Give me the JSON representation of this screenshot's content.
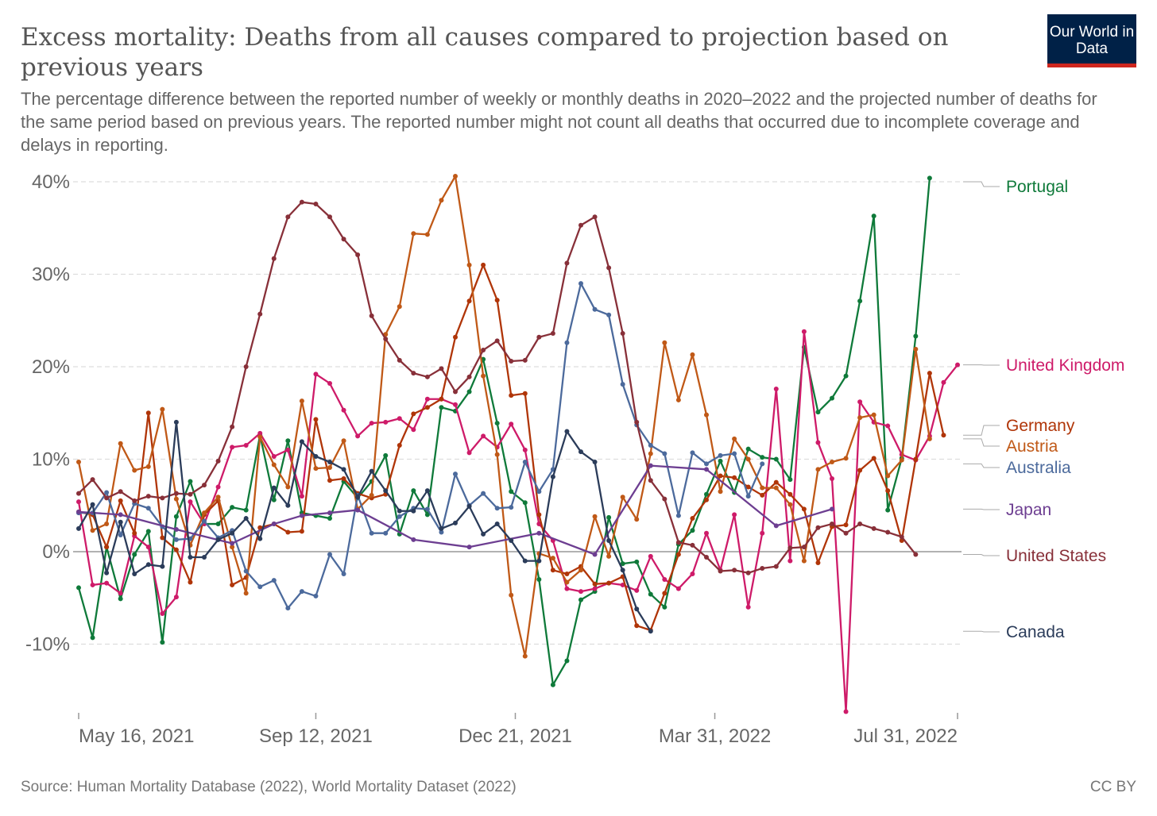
{
  "header": {
    "title": "Excess mortality: Deaths from all causes compared to projection based on previous years",
    "subtitle": "The percentage difference between the reported number of weekly or monthly deaths in 2020–2022 and the projected number of deaths for the same period based on previous years. The reported number might not count all deaths that occurred due to incomplete coverage and delays in reporting.",
    "logo": "Our World in Data"
  },
  "footer": {
    "source": "Source: Human Mortality Database (2022), World Mortality Dataset (2022)",
    "license": "CC BY"
  },
  "chart_data": {
    "type": "line",
    "title": "Excess mortality: Deaths from all causes compared to projection based on previous years",
    "x_unit": "weeks since May 16, 2021",
    "x_start": "May 16, 2021",
    "xlim": [
      0,
      63
    ],
    "ylim": [
      -17.5,
      41
    ],
    "y_ticks": [
      {
        "v": -10,
        "label": "-10%"
      },
      {
        "v": 0,
        "label": "0%"
      },
      {
        "v": 10,
        "label": "10%"
      },
      {
        "v": 20,
        "label": "20%"
      },
      {
        "v": 30,
        "label": "30%"
      },
      {
        "v": 40,
        "label": "40%"
      }
    ],
    "x_ticks": [
      {
        "week": 0,
        "label": "May 16, 2021"
      },
      {
        "week": 17,
        "label": "Sep 12, 2021"
      },
      {
        "week": 31.3,
        "label": "Dec 21, 2021"
      },
      {
        "week": 45.6,
        "label": "Mar 31, 2022"
      },
      {
        "week": 63,
        "label": "Jul 31, 2022"
      }
    ],
    "grid": true,
    "legend": "right, labels at line ends",
    "series": [
      {
        "name": "Portugal",
        "color": "#0f7a3a",
        "values": [
          -3.9,
          -9.3,
          0.5,
          -5.1,
          -0.3,
          2.2,
          -9.8,
          3.8,
          7.6,
          3.0,
          3.0,
          4.8,
          4.5,
          12.6,
          5.6,
          12.0,
          4.2,
          3.9,
          3.6,
          7.6,
          5.8,
          7.6,
          10.4,
          1.9,
          6.6,
          4.0,
          15.6,
          15.2,
          17.3,
          20.8,
          13.9,
          6.5,
          5.3,
          -3.0,
          -14.4,
          -11.8,
          -5.2,
          -4.3,
          3.7,
          -1.3,
          -1.1,
          -4.6,
          -6.0,
          0.8,
          2.3,
          6.2,
          9.8,
          6.4,
          11.1,
          10.2,
          10.0,
          7.8,
          22.1,
          15.1,
          16.6,
          19.0,
          27.1,
          36.3,
          4.5,
          10.1,
          23.3,
          40.4,
          null,
          null
        ]
      },
      {
        "name": "United Kingdom",
        "color": "#ce1b69",
        "values": [
          5.4,
          -3.6,
          -3.4,
          -4.5,
          1.7,
          0.5,
          -6.7,
          -4.9,
          5.4,
          3.0,
          7.0,
          11.3,
          11.5,
          12.8,
          10.3,
          11.0,
          6.0,
          19.2,
          18.2,
          15.3,
          12.5,
          13.9,
          14.0,
          14.4,
          13.2,
          16.5,
          16.5,
          15.9,
          10.7,
          12.5,
          11.3,
          13.8,
          11.0,
          3.0,
          1.2,
          -4.0,
          -4.3,
          -4.0,
          -3.4,
          -3.6,
          -4.2,
          -0.5,
          -3.0,
          -4.0,
          -2.4,
          2.0,
          -2.0,
          4.0,
          -6.0,
          2.0,
          17.6,
          -1.0,
          23.8,
          11.8,
          7.9,
          -17.3,
          16.2,
          14.0,
          13.6,
          10.5,
          9.9,
          12.5,
          18.3,
          20.2
        ]
      },
      {
        "name": "Germany",
        "color": "#b03508",
        "values": [
          4.3,
          4.0,
          0.5,
          5.5,
          2.0,
          15.0,
          1.5,
          0.2,
          -3.3,
          4.0,
          5.5,
          -3.6,
          -2.8,
          2.6,
          3.0,
          2.1,
          2.2,
          14.3,
          7.7,
          7.9,
          6.3,
          5.8,
          6.2,
          11.5,
          14.9,
          15.6,
          16.5,
          23.2,
          27.1,
          31.0,
          27.2,
          16.9,
          17.1,
          4.0,
          -2.0,
          -2.4,
          -1.6,
          -3.5,
          -3.4,
          -2.7,
          -8.0,
          -8.5,
          -4.5,
          -0.3,
          3.6,
          5.6,
          8.2,
          8.0,
          7.0,
          6.1,
          7.5,
          6.2,
          4.6,
          -1.2,
          2.7,
          2.9,
          8.8,
          10.1,
          6.6,
          1.2,
          10.0,
          19.3,
          12.6,
          null
        ]
      },
      {
        "name": "Austria",
        "color": "#c05917",
        "values": [
          9.7,
          2.3,
          3.0,
          11.7,
          8.8,
          9.2,
          15.4,
          5.7,
          0.7,
          4.2,
          5.9,
          0.5,
          -4.5,
          12.4,
          9.4,
          7.0,
          16.3,
          9.0,
          9.1,
          12.0,
          4.6,
          6.1,
          23.5,
          26.5,
          34.4,
          34.3,
          38.0,
          40.6,
          31.0,
          19.0,
          10.5,
          -4.7,
          -11.3,
          -0.2,
          -0.7,
          -3.3,
          -2.0,
          3.8,
          -0.5,
          5.9,
          3.5,
          10.6,
          22.6,
          16.4,
          21.3,
          14.8,
          6.5,
          12.2,
          10.0,
          6.9,
          6.9,
          5.1,
          -1.0,
          8.9,
          9.7,
          10.1,
          14.5,
          14.8,
          8.2,
          9.9,
          21.9,
          12.2,
          null,
          null
        ]
      },
      {
        "name": "Australia",
        "color": "#4c6a9c",
        "values": [
          4.2,
          4.2,
          6.4,
          1.8,
          5.2,
          4.7,
          2.7,
          1.3,
          1.4,
          3.3,
          1.5,
          2.3,
          -2.1,
          -3.8,
          -3.1,
          -6.1,
          -4.3,
          -4.8,
          -0.3,
          -2.4,
          6.1,
          2.0,
          2.0,
          3.8,
          4.7,
          4.6,
          2.1,
          8.4,
          5.0,
          6.3,
          4.7,
          4.8,
          9.7,
          6.5,
          8.9,
          22.6,
          29.0,
          26.2,
          25.6,
          18.1,
          13.7,
          11.5,
          10.6,
          3.9,
          10.7,
          9.5,
          10.4,
          10.6,
          6.0,
          9.5,
          null,
          null,
          null,
          null,
          null,
          null,
          null,
          null,
          null,
          null,
          null,
          null,
          null,
          null
        ]
      },
      {
        "name": "Japan",
        "color": "#6d3e91",
        "values": [
          4.3,
          null,
          null,
          4.0,
          null,
          null,
          null,
          2.4,
          null,
          null,
          null,
          0.9,
          null,
          null,
          3.0,
          null,
          3.9,
          null,
          4.2,
          null,
          4.5,
          null,
          null,
          null,
          1.3,
          null,
          null,
          null,
          0.5,
          null,
          null,
          null,
          null,
          2.0,
          null,
          null,
          null,
          -0.3,
          null,
          null,
          null,
          9.3,
          null,
          null,
          null,
          8.9,
          null,
          null,
          null,
          null,
          2.8,
          null,
          null,
          null,
          4.6,
          null,
          null,
          null,
          null,
          null,
          null,
          null,
          null,
          null
        ]
      },
      {
        "name": "United States",
        "color": "#883039",
        "values": [
          6.3,
          7.8,
          5.8,
          6.5,
          5.5,
          6.0,
          5.8,
          6.3,
          6.2,
          7.2,
          9.8,
          13.5,
          20.0,
          25.7,
          31.7,
          36.2,
          37.8,
          37.6,
          36.2,
          33.8,
          32.1,
          25.5,
          23.0,
          20.7,
          19.3,
          18.9,
          19.8,
          17.3,
          18.9,
          21.8,
          22.8,
          20.6,
          20.7,
          23.2,
          23.6,
          31.2,
          35.3,
          36.2,
          30.7,
          23.6,
          14.0,
          7.7,
          5.7,
          1.0,
          0.7,
          -0.6,
          -2.1,
          -2.0,
          -2.3,
          -1.8,
          -1.6,
          0.4,
          0.5,
          2.6,
          3.0,
          2.0,
          3.0,
          2.5,
          2.1,
          1.6,
          -0.3,
          null,
          null,
          null
        ]
      },
      {
        "name": "Canada",
        "color": "#2b3c5a",
        "values": [
          2.5,
          5.1,
          -2.3,
          3.2,
          -2.4,
          -1.4,
          -1.6,
          14.0,
          -0.6,
          -0.6,
          1.3,
          2.0,
          3.6,
          1.4,
          6.9,
          5.0,
          11.9,
          10.3,
          9.7,
          8.9,
          5.9,
          8.7,
          6.6,
          4.4,
          4.4,
          6.6,
          2.5,
          3.1,
          4.9,
          1.9,
          3.0,
          1.2,
          -1.0,
          -1.0,
          8.1,
          13.0,
          10.8,
          9.7,
          1.2,
          -2.0,
          -6.2,
          -8.6,
          null,
          null,
          null,
          null,
          null,
          null,
          null,
          null,
          null,
          null,
          null,
          null,
          null,
          null,
          null,
          null,
          null,
          null,
          null,
          null,
          null,
          null
        ]
      }
    ]
  }
}
